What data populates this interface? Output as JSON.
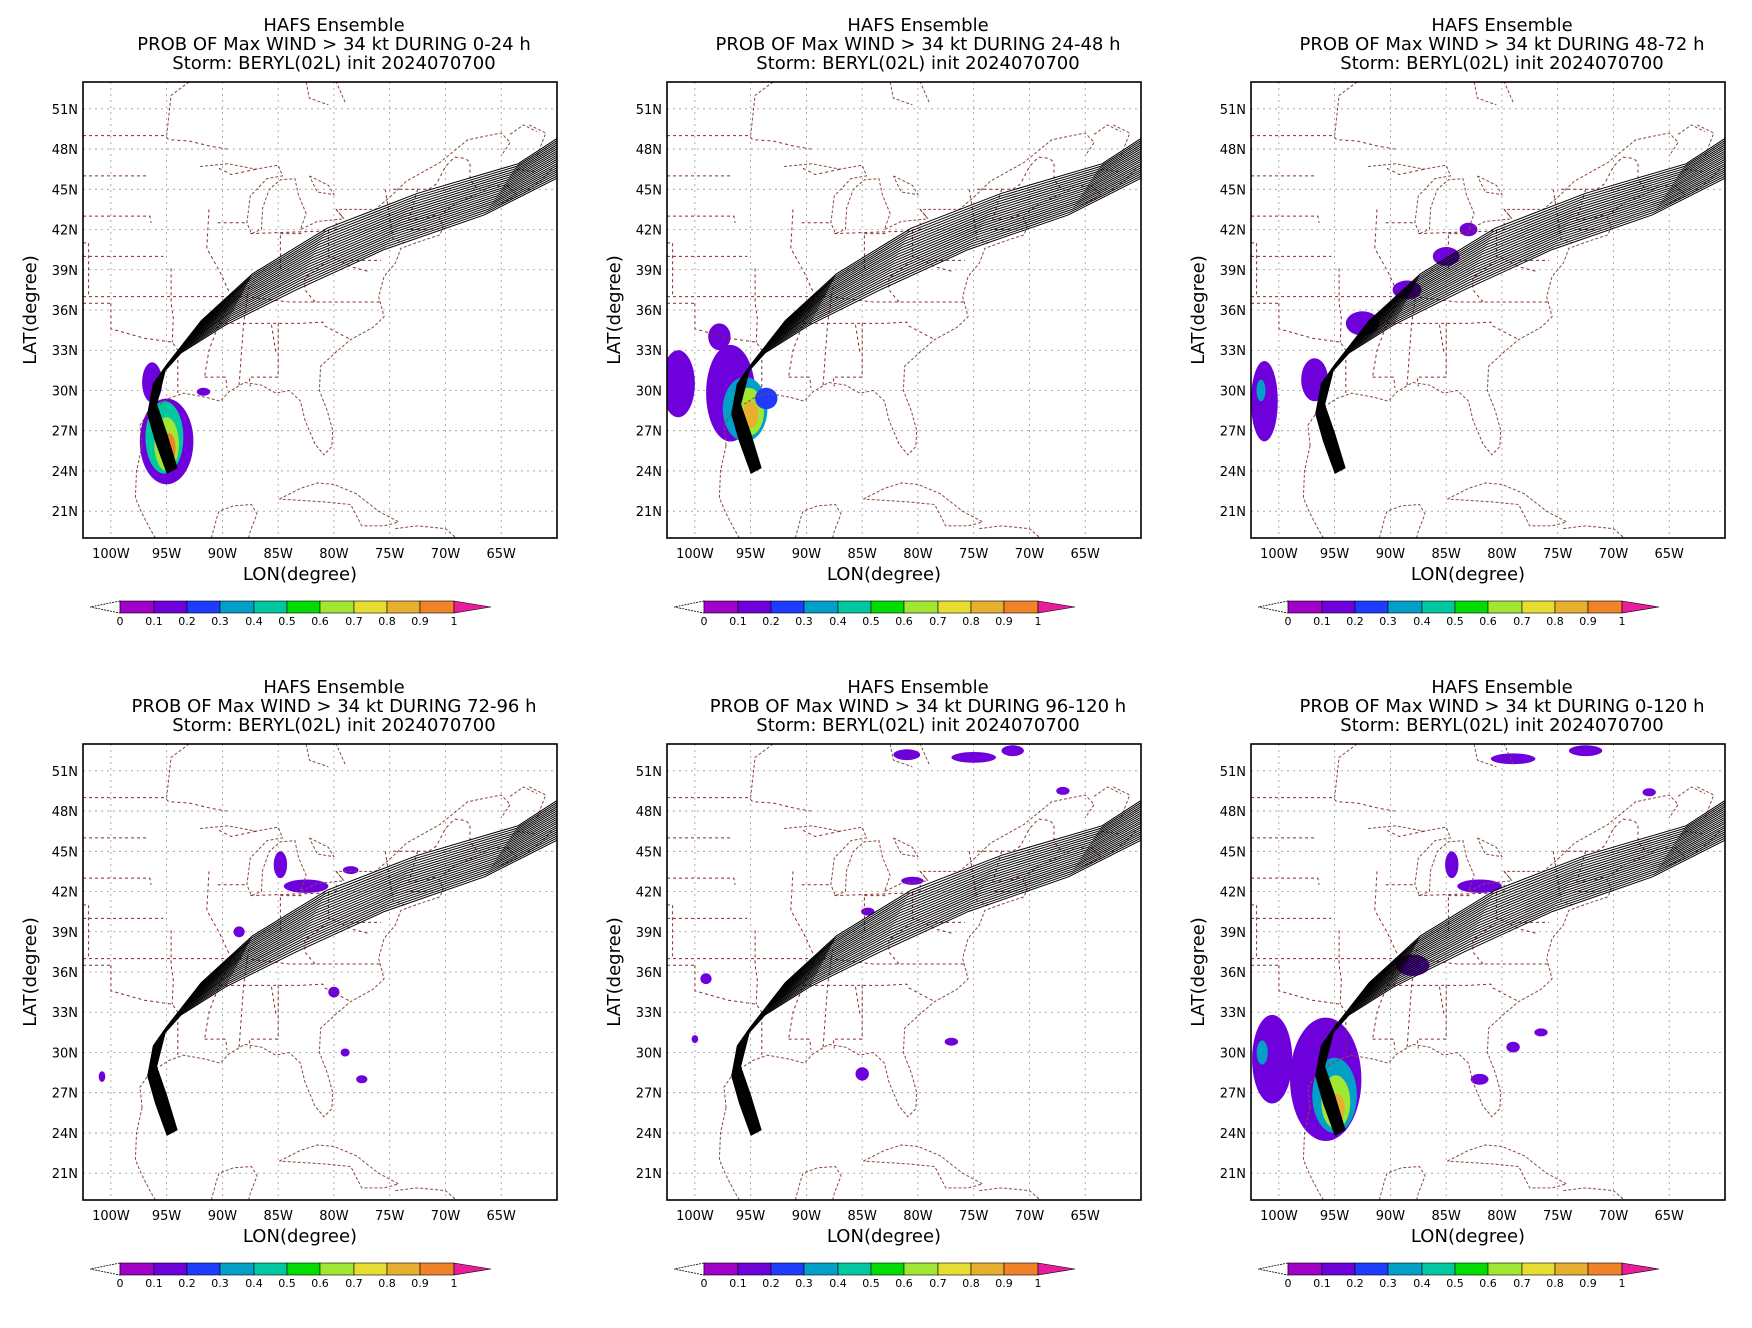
{
  "chart_data": [
    {
      "type": "heatmap",
      "title_lines": [
        "HAFS Ensemble",
        "PROB OF Max WIND > 34 kt DURING  0-24 h",
        "Storm: BERYL(02L) init 2024070700"
      ],
      "xlabel": "LON(degree)",
      "ylabel": "LAT(degree)",
      "x_ticks": [
        "100W",
        "95W",
        "90W",
        "85W",
        "80W",
        "75W",
        "70W",
        "65W"
      ],
      "y_ticks": [
        "51N",
        "48N",
        "45N",
        "42N",
        "39N",
        "36N",
        "33N",
        "30N",
        "27N",
        "24N",
        "21N"
      ],
      "xlim": [
        -102.5,
        -60
      ],
      "ylim": [
        19,
        53
      ],
      "grid": true,
      "colorbar_ticks": [
        "0",
        "0.1",
        "0.2",
        "0.3",
        "0.4",
        "0.5",
        "0.6",
        "0.7",
        "0.8",
        "0.9",
        "1"
      ],
      "prob_regions": [
        {
          "lon": -95.0,
          "lat": 26.2,
          "rx": 2.4,
          "ry": 3.2,
          "p": 0.1
        },
        {
          "lon": -95.2,
          "lat": 26.5,
          "rx": 1.7,
          "ry": 2.7,
          "p": 0.35
        },
        {
          "lon": -95.0,
          "lat": 26.0,
          "rx": 1.1,
          "ry": 2.0,
          "p": 0.6
        },
        {
          "lon": -94.8,
          "lat": 25.7,
          "rx": 0.6,
          "ry": 1.1,
          "p": 0.85
        },
        {
          "lon": -96.3,
          "lat": 30.6,
          "rx": 0.9,
          "ry": 1.5,
          "p": 0.1
        },
        {
          "lon": -91.7,
          "lat": 29.9,
          "rx": 0.6,
          "ry": 0.3,
          "p": 0.1
        }
      ]
    },
    {
      "type": "heatmap",
      "title_lines": [
        "HAFS Ensemble",
        "PROB OF Max WIND > 34 kt DURING 24-48 h",
        "Storm: BERYL(02L) init 2024070700"
      ],
      "xlabel": "LON(degree)",
      "ylabel": "LAT(degree)",
      "x_ticks": [
        "100W",
        "95W",
        "90W",
        "85W",
        "80W",
        "75W",
        "70W",
        "65W"
      ],
      "y_ticks": [
        "51N",
        "48N",
        "45N",
        "42N",
        "39N",
        "36N",
        "33N",
        "30N",
        "27N",
        "24N",
        "21N"
      ],
      "xlim": [
        -102.5,
        -60
      ],
      "ylim": [
        19,
        53
      ],
      "grid": true,
      "colorbar_ticks": [
        "0",
        "0.1",
        "0.2",
        "0.3",
        "0.4",
        "0.5",
        "0.6",
        "0.7",
        "0.8",
        "0.9",
        "1"
      ],
      "prob_regions": [
        {
          "lon": -101.5,
          "lat": 30.5,
          "rx": 1.5,
          "ry": 2.5,
          "p": 0.1
        },
        {
          "lon": -96.8,
          "lat": 29.8,
          "rx": 2.2,
          "ry": 3.6,
          "p": 0.1
        },
        {
          "lon": -95.5,
          "lat": 28.6,
          "rx": 2.0,
          "ry": 2.4,
          "p": 0.3
        },
        {
          "lon": -95.2,
          "lat": 28.4,
          "rx": 1.4,
          "ry": 1.8,
          "p": 0.55
        },
        {
          "lon": -95.0,
          "lat": 28.2,
          "rx": 0.7,
          "ry": 1.0,
          "p": 0.8
        },
        {
          "lon": -93.6,
          "lat": 29.4,
          "rx": 1.0,
          "ry": 0.8,
          "p": 0.2
        },
        {
          "lon": -97.8,
          "lat": 34.0,
          "rx": 1.0,
          "ry": 1.0,
          "p": 0.1
        }
      ]
    },
    {
      "type": "heatmap",
      "title_lines": [
        "HAFS Ensemble",
        "PROB OF Max WIND > 34 kt DURING 48-72 h",
        "Storm: BERYL(02L) init 2024070700"
      ],
      "xlabel": "LON(degree)",
      "ylabel": "LAT(degree)",
      "x_ticks": [
        "100W",
        "95W",
        "90W",
        "85W",
        "80W",
        "75W",
        "70W",
        "65W"
      ],
      "y_ticks": [
        "51N",
        "48N",
        "45N",
        "42N",
        "39N",
        "36N",
        "33N",
        "30N",
        "27N",
        "24N",
        "21N"
      ],
      "xlim": [
        -102.5,
        -60
      ],
      "ylim": [
        19,
        53
      ],
      "grid": true,
      "colorbar_ticks": [
        "0",
        "0.1",
        "0.2",
        "0.3",
        "0.4",
        "0.5",
        "0.6",
        "0.7",
        "0.8",
        "0.9",
        "1"
      ],
      "prob_regions": [
        {
          "lon": -101.3,
          "lat": 29.2,
          "rx": 1.2,
          "ry": 3.0,
          "p": 0.1
        },
        {
          "lon": -101.6,
          "lat": 30.0,
          "rx": 0.4,
          "ry": 0.8,
          "p": 0.25
        },
        {
          "lon": -96.8,
          "lat": 30.8,
          "rx": 1.2,
          "ry": 1.6,
          "p": 0.1
        },
        {
          "lon": -92.5,
          "lat": 35.0,
          "rx": 1.5,
          "ry": 0.9,
          "p": 0.1
        },
        {
          "lon": -88.5,
          "lat": 37.5,
          "rx": 1.3,
          "ry": 0.7,
          "p": 0.1
        },
        {
          "lon": -85.0,
          "lat": 40.0,
          "rx": 1.2,
          "ry": 0.7,
          "p": 0.1
        },
        {
          "lon": -83.0,
          "lat": 42.0,
          "rx": 0.8,
          "ry": 0.5,
          "p": 0.1
        }
      ]
    },
    {
      "type": "heatmap",
      "title_lines": [
        "HAFS Ensemble",
        "PROB OF Max WIND > 34 kt DURING 72-96 h",
        "Storm: BERYL(02L) init 2024070700"
      ],
      "xlabel": "LON(degree)",
      "ylabel": "LAT(degree)",
      "x_ticks": [
        "100W",
        "95W",
        "90W",
        "85W",
        "80W",
        "75W",
        "70W",
        "65W"
      ],
      "y_ticks": [
        "51N",
        "48N",
        "45N",
        "42N",
        "39N",
        "36N",
        "33N",
        "30N",
        "27N",
        "24N",
        "21N"
      ],
      "xlim": [
        -102.5,
        -60
      ],
      "ylim": [
        19,
        53
      ],
      "grid": true,
      "colorbar_ticks": [
        "0",
        "0.1",
        "0.2",
        "0.3",
        "0.4",
        "0.5",
        "0.6",
        "0.7",
        "0.8",
        "0.9",
        "1"
      ],
      "prob_regions": [
        {
          "lon": -84.8,
          "lat": 44.0,
          "rx": 0.6,
          "ry": 1.0,
          "p": 0.1
        },
        {
          "lon": -82.5,
          "lat": 42.4,
          "rx": 2.0,
          "ry": 0.5,
          "p": 0.1
        },
        {
          "lon": -78.5,
          "lat": 43.6,
          "rx": 0.7,
          "ry": 0.3,
          "p": 0.1
        },
        {
          "lon": -88.5,
          "lat": 39.0,
          "rx": 0.5,
          "ry": 0.4,
          "p": 0.1
        },
        {
          "lon": -80.0,
          "lat": 34.5,
          "rx": 0.5,
          "ry": 0.4,
          "p": 0.1
        },
        {
          "lon": -79.0,
          "lat": 30.0,
          "rx": 0.4,
          "ry": 0.3,
          "p": 0.1
        },
        {
          "lon": -77.5,
          "lat": 28.0,
          "rx": 0.5,
          "ry": 0.3,
          "p": 0.1
        },
        {
          "lon": -100.8,
          "lat": 28.2,
          "rx": 0.3,
          "ry": 0.4,
          "p": 0.1
        }
      ]
    },
    {
      "type": "heatmap",
      "title_lines": [
        "HAFS Ensemble",
        "PROB OF Max WIND > 34 kt DURING 96-120 h",
        "Storm: BERYL(02L) init 2024070700"
      ],
      "xlabel": "LON(degree)",
      "ylabel": "LAT(degree)",
      "x_ticks": [
        "100W",
        "95W",
        "90W",
        "85W",
        "80W",
        "75W",
        "70W",
        "65W"
      ],
      "y_ticks": [
        "51N",
        "48N",
        "45N",
        "42N",
        "39N",
        "36N",
        "33N",
        "30N",
        "27N",
        "24N",
        "21N"
      ],
      "xlim": [
        -102.5,
        -60
      ],
      "ylim": [
        19,
        53
      ],
      "grid": true,
      "colorbar_ticks": [
        "0",
        "0.1",
        "0.2",
        "0.3",
        "0.4",
        "0.5",
        "0.6",
        "0.7",
        "0.8",
        "0.9",
        "1"
      ],
      "prob_regions": [
        {
          "lon": -81.0,
          "lat": 52.2,
          "rx": 1.2,
          "ry": 0.4,
          "p": 0.1
        },
        {
          "lon": -75.0,
          "lat": 52.0,
          "rx": 2.0,
          "ry": 0.4,
          "p": 0.1
        },
        {
          "lon": -71.5,
          "lat": 52.5,
          "rx": 1.0,
          "ry": 0.4,
          "p": 0.1
        },
        {
          "lon": -67.0,
          "lat": 49.5,
          "rx": 0.6,
          "ry": 0.3,
          "p": 0.1
        },
        {
          "lon": -80.5,
          "lat": 42.8,
          "rx": 1.0,
          "ry": 0.3,
          "p": 0.1
        },
        {
          "lon": -84.5,
          "lat": 40.5,
          "rx": 0.6,
          "ry": 0.3,
          "p": 0.1
        },
        {
          "lon": -99.0,
          "lat": 35.5,
          "rx": 0.5,
          "ry": 0.4,
          "p": 0.1
        },
        {
          "lon": -85.0,
          "lat": 28.4,
          "rx": 0.6,
          "ry": 0.5,
          "p": 0.1
        },
        {
          "lon": -77.0,
          "lat": 30.8,
          "rx": 0.6,
          "ry": 0.3,
          "p": 0.1
        },
        {
          "lon": -100.0,
          "lat": 31.0,
          "rx": 0.3,
          "ry": 0.3,
          "p": 0.1
        }
      ]
    },
    {
      "type": "heatmap",
      "title_lines": [
        "HAFS Ensemble",
        "PROB OF Max WIND > 34 kt DURING 0-120 h",
        "Storm: BERYL(02L) init 2024070700"
      ],
      "xlabel": "LON(degree)",
      "ylabel": "LAT(degree)",
      "x_ticks": [
        "100W",
        "95W",
        "90W",
        "85W",
        "80W",
        "75W",
        "70W",
        "65W"
      ],
      "y_ticks": [
        "51N",
        "48N",
        "45N",
        "42N",
        "39N",
        "36N",
        "33N",
        "30N",
        "27N",
        "24N",
        "21N"
      ],
      "xlim": [
        -102.5,
        -60
      ],
      "ylim": [
        19,
        53
      ],
      "grid": true,
      "colorbar_ticks": [
        "0",
        "0.1",
        "0.2",
        "0.3",
        "0.4",
        "0.5",
        "0.6",
        "0.7",
        "0.8",
        "0.9",
        "1"
      ],
      "prob_regions": [
        {
          "lon": -100.6,
          "lat": 29.5,
          "rx": 1.8,
          "ry": 3.3,
          "p": 0.1
        },
        {
          "lon": -101.5,
          "lat": 30.0,
          "rx": 0.5,
          "ry": 0.9,
          "p": 0.25
        },
        {
          "lon": -95.8,
          "lat": 28.0,
          "rx": 3.2,
          "ry": 4.6,
          "p": 0.1
        },
        {
          "lon": -95.0,
          "lat": 26.8,
          "rx": 2.0,
          "ry": 2.8,
          "p": 0.3
        },
        {
          "lon": -94.9,
          "lat": 26.3,
          "rx": 1.3,
          "ry": 2.0,
          "p": 0.55
        },
        {
          "lon": -94.8,
          "lat": 25.8,
          "rx": 0.7,
          "ry": 1.1,
          "p": 0.8
        },
        {
          "lon": -84.5,
          "lat": 44.0,
          "rx": 0.6,
          "ry": 1.0,
          "p": 0.1
        },
        {
          "lon": -82.0,
          "lat": 42.4,
          "rx": 2.0,
          "ry": 0.5,
          "p": 0.1
        },
        {
          "lon": -79.0,
          "lat": 51.9,
          "rx": 2.0,
          "ry": 0.4,
          "p": 0.1
        },
        {
          "lon": -72.5,
          "lat": 52.5,
          "rx": 1.5,
          "ry": 0.4,
          "p": 0.1
        },
        {
          "lon": -88.0,
          "lat": 36.5,
          "rx": 1.5,
          "ry": 0.8,
          "p": 0.1
        },
        {
          "lon": -79.0,
          "lat": 30.4,
          "rx": 0.6,
          "ry": 0.4,
          "p": 0.1
        },
        {
          "lon": -82.0,
          "lat": 28.0,
          "rx": 0.8,
          "ry": 0.4,
          "p": 0.1
        },
        {
          "lon": -66.8,
          "lat": 49.4,
          "rx": 0.6,
          "ry": 0.3,
          "p": 0.1
        },
        {
          "lon": -76.5,
          "lat": 31.5,
          "rx": 0.6,
          "ry": 0.3,
          "p": 0.1
        }
      ]
    }
  ]
}
